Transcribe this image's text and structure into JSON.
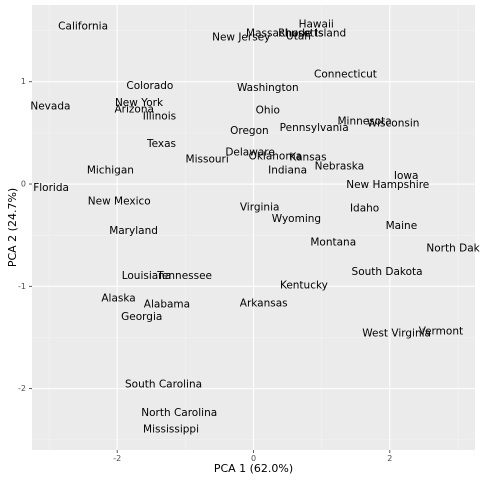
{
  "chart_data": {
    "type": "scatter",
    "title": "",
    "xlabel": "PCA 1 (62.0%)",
    "ylabel": "PCA 2 (24.7%)",
    "xlim": [
      -3.25,
      3.25
    ],
    "ylim": [
      -2.6,
      1.75
    ],
    "x_ticks": [
      -2,
      0,
      2
    ],
    "x_tick_labels": [
      "-2",
      "0",
      "2"
    ],
    "y_ticks": [
      -2,
      -1,
      0,
      1
    ],
    "y_tick_labels": [
      "-2",
      "-1",
      "0",
      "1"
    ],
    "grid": true,
    "legend": "none",
    "colors": {
      "panel": "#ebebeb",
      "grid_major": "#ffffff",
      "grid_minor": "#f3f3f3",
      "text": "#000000",
      "tick_text": "#4d4d4d"
    },
    "points": [
      {
        "label": "California",
        "x": -2.5,
        "y": 1.54
      },
      {
        "label": "Hawaii",
        "x": 0.92,
        "y": 1.56
      },
      {
        "label": "Massachusetts",
        "x": 0.46,
        "y": 1.47
      },
      {
        "label": "Rhode Island",
        "x": 0.86,
        "y": 1.47
      },
      {
        "label": "Utah",
        "x": 0.66,
        "y": 1.44
      },
      {
        "label": "New Jersey",
        "x": -0.18,
        "y": 1.43
      },
      {
        "label": "Connecticut",
        "x": 1.35,
        "y": 1.07
      },
      {
        "label": "Colorado",
        "x": -1.52,
        "y": 0.96
      },
      {
        "label": "Washington",
        "x": 0.21,
        "y": 0.94
      },
      {
        "label": "Nevada",
        "x": -2.98,
        "y": 0.76
      },
      {
        "label": "New York",
        "x": -1.68,
        "y": 0.79
      },
      {
        "label": "Arizona",
        "x": -1.75,
        "y": 0.73
      },
      {
        "label": "Ohio",
        "x": 0.21,
        "y": 0.72
      },
      {
        "label": "Illinois",
        "x": -1.38,
        "y": 0.66
      },
      {
        "label": "Minnesota",
        "x": 1.63,
        "y": 0.61
      },
      {
        "label": "Wisconsin",
        "x": 2.05,
        "y": 0.59
      },
      {
        "label": "Pennsylvania",
        "x": 0.89,
        "y": 0.55
      },
      {
        "label": "Oregon",
        "x": -0.06,
        "y": 0.52
      },
      {
        "label": "Texas",
        "x": -1.35,
        "y": 0.39
      },
      {
        "label": "Delaware",
        "x": -0.05,
        "y": 0.31
      },
      {
        "label": "Oklahoma",
        "x": 0.32,
        "y": 0.27
      },
      {
        "label": "Kansas",
        "x": 0.8,
        "y": 0.26
      },
      {
        "label": "Missouri",
        "x": -0.68,
        "y": 0.24
      },
      {
        "label": "Nebraska",
        "x": 1.26,
        "y": 0.17
      },
      {
        "label": "Michigan",
        "x": -2.1,
        "y": 0.13
      },
      {
        "label": "Indiana",
        "x": 0.5,
        "y": 0.13
      },
      {
        "label": "Iowa",
        "x": 2.24,
        "y": 0.08
      },
      {
        "label": "New Hampshire",
        "x": 1.97,
        "y": -0.01
      },
      {
        "label": "Florida",
        "x": -2.97,
        "y": -0.04
      },
      {
        "label": "New Mexico",
        "x": -1.97,
        "y": -0.17
      },
      {
        "label": "Virginia",
        "x": 0.09,
        "y": -0.23
      },
      {
        "label": "Idaho",
        "x": 1.63,
        "y": -0.24
      },
      {
        "label": "Wyoming",
        "x": 0.63,
        "y": -0.34
      },
      {
        "label": "Maine",
        "x": 2.17,
        "y": -0.41
      },
      {
        "label": "Maryland",
        "x": -1.76,
        "y": -0.46
      },
      {
        "label": "Montana",
        "x": 1.17,
        "y": -0.57
      },
      {
        "label": "North Dakota",
        "x": 3.05,
        "y": -0.63
      },
      {
        "label": "Louisiana",
        "x": -1.57,
        "y": -0.9
      },
      {
        "label": "Tennessee",
        "x": -1.01,
        "y": -0.9
      },
      {
        "label": "South Dakota",
        "x": 1.96,
        "y": -0.86
      },
      {
        "label": "Kentucky",
        "x": 0.74,
        "y": -0.99
      },
      {
        "label": "Alaska",
        "x": -1.98,
        "y": -1.12
      },
      {
        "label": "Arkansas",
        "x": 0.15,
        "y": -1.17
      },
      {
        "label": "Alabama",
        "x": -1.27,
        "y": -1.18
      },
      {
        "label": "Georgia",
        "x": -1.64,
        "y": -1.3
      },
      {
        "label": "West Virginia",
        "x": 2.1,
        "y": -1.46
      },
      {
        "label": "Vermont",
        "x": 2.75,
        "y": -1.44
      },
      {
        "label": "South Carolina",
        "x": -1.32,
        "y": -1.96
      },
      {
        "label": "North Carolina",
        "x": -1.09,
        "y": -2.24
      },
      {
        "label": "Mississippi",
        "x": -1.21,
        "y": -2.4
      }
    ]
  }
}
